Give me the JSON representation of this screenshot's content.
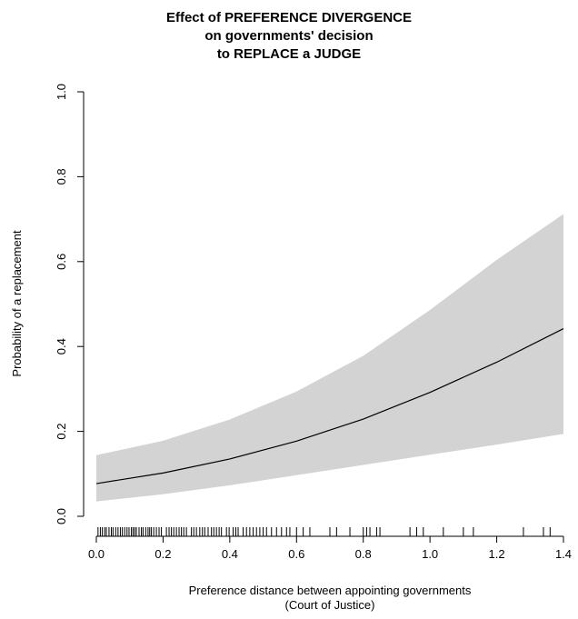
{
  "chart_data": {
    "type": "line",
    "title_lines": [
      "Effect of PREFERENCE DIVERGENCE",
      "on governments' decision",
      "to REPLACE a JUDGE"
    ],
    "xlabel_lines": [
      "Preference distance between appointing governments",
      "(Court of Justice)"
    ],
    "ylabel": "Probability of a replacement",
    "xlim": [
      0.0,
      1.4
    ],
    "ylim": [
      0.0,
      1.0
    ],
    "x_ticks": [
      0.0,
      0.2,
      0.4,
      0.6,
      0.8,
      1.0,
      1.2,
      1.4
    ],
    "x_tick_labels": [
      "0.0",
      "0.2",
      "0.4",
      "0.6",
      "0.8",
      "1.0",
      "1.2",
      "1.4"
    ],
    "y_ticks": [
      0.0,
      0.2,
      0.4,
      0.6,
      0.8,
      1.0
    ],
    "y_tick_labels": [
      "0.0",
      "0.2",
      "0.4",
      "0.6",
      "0.8",
      "1.0"
    ],
    "band_color": "#d3d3d3",
    "line_color": "#000000",
    "series": [
      {
        "x": [
          0.0,
          0.2,
          0.4,
          0.6,
          0.8,
          1.0,
          1.2,
          1.4
        ],
        "y": [
          0.077,
          0.102,
          0.135,
          0.177,
          0.229,
          0.292,
          0.363,
          0.442
        ],
        "lower": [
          0.035,
          0.052,
          0.073,
          0.097,
          0.121,
          0.145,
          0.169,
          0.194
        ],
        "upper": [
          0.144,
          0.178,
          0.228,
          0.294,
          0.378,
          0.486,
          0.604,
          0.712
        ]
      }
    ],
    "rug": [
      0.005,
      0.012,
      0.018,
      0.025,
      0.03,
      0.038,
      0.045,
      0.05,
      0.058,
      0.065,
      0.072,
      0.078,
      0.085,
      0.092,
      0.098,
      0.105,
      0.11,
      0.115,
      0.12,
      0.128,
      0.135,
      0.14,
      0.148,
      0.155,
      0.16,
      0.165,
      0.172,
      0.18,
      0.188,
      0.195,
      0.21,
      0.218,
      0.225,
      0.232,
      0.24,
      0.248,
      0.255,
      0.262,
      0.27,
      0.285,
      0.292,
      0.3,
      0.31,
      0.318,
      0.325,
      0.335,
      0.345,
      0.352,
      0.36,
      0.368,
      0.375,
      0.39,
      0.398,
      0.41,
      0.418,
      0.425,
      0.44,
      0.45,
      0.46,
      0.47,
      0.48,
      0.49,
      0.5,
      0.51,
      0.525,
      0.54,
      0.555,
      0.57,
      0.58,
      0.6,
      0.62,
      0.64,
      0.7,
      0.72,
      0.76,
      0.8,
      0.81,
      0.82,
      0.84,
      0.85,
      0.94,
      0.96,
      0.98,
      1.04,
      1.1,
      1.13,
      1.28,
      1.34,
      1.36
    ]
  }
}
